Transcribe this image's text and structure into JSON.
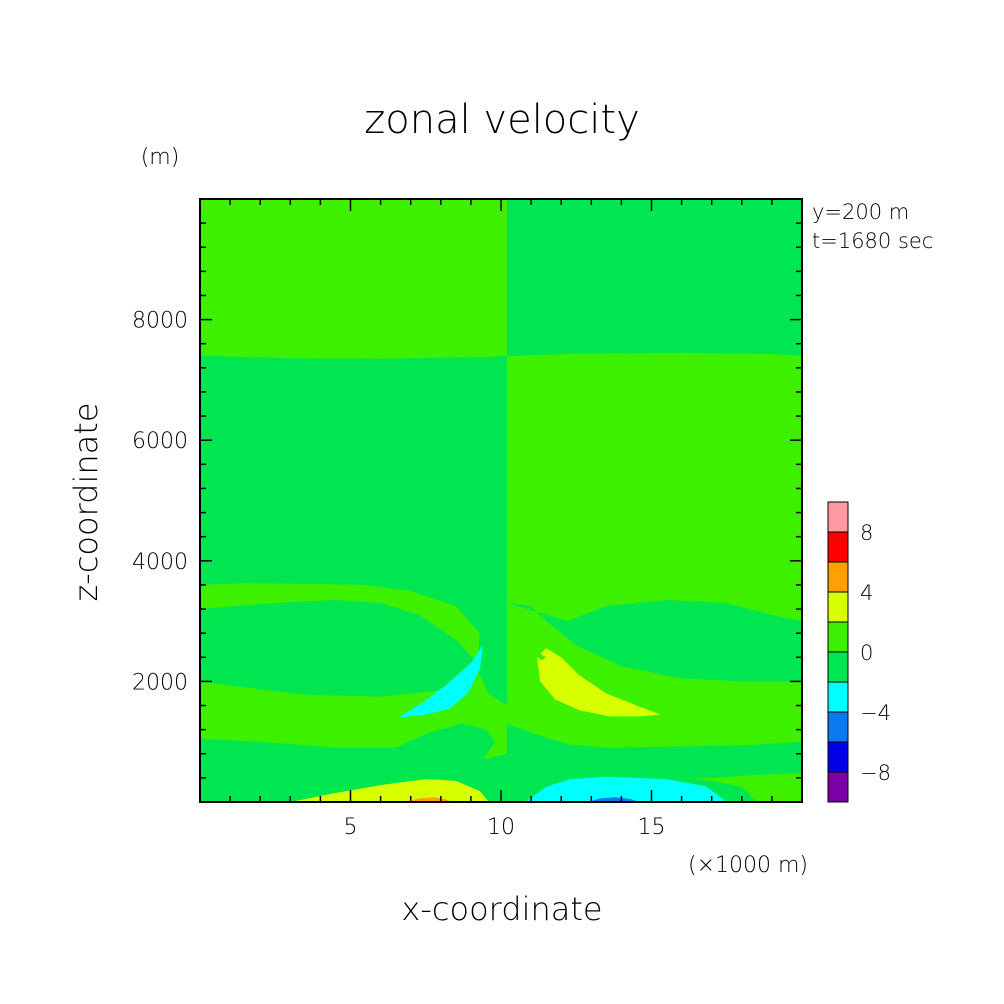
{
  "title": "zonal velocity",
  "chart_data": {
    "type": "contour",
    "title": "zonal velocity",
    "xlabel": "x-coordinate",
    "ylabel": "z-coordinate",
    "x_unit": "(×1000 m)",
    "y_unit": "(m)",
    "info": [
      "y=200 m",
      "t=1680 sec"
    ],
    "xlim": [
      0,
      20
    ],
    "ylim": [
      0,
      10000
    ],
    "x_ticks": [
      5,
      10,
      15
    ],
    "y_ticks": [
      2000,
      4000,
      6000,
      8000
    ],
    "x_minor_step": 1,
    "y_minor_step": 400,
    "grid": false,
    "colorbar": {
      "levels": [
        -10,
        -8,
        -6,
        -4,
        -2,
        0,
        2,
        4,
        6,
        8,
        10
      ],
      "colors": [
        "#7a00a8",
        "#0000e6",
        "#0a78ee",
        "#00ffff",
        "#00e650",
        "#3cf000",
        "#d8ff00",
        "#ff9f00",
        "#ff0000",
        "#ff9aa0"
      ],
      "tick_labels": [
        -8,
        -4,
        0,
        4,
        8
      ]
    },
    "regions": [
      {
        "band": "2 to 0",
        "color": "#00e650",
        "polygon": [
          [
            0,
            0
          ],
          [
            20,
            0
          ],
          [
            20,
            10000
          ],
          [
            0,
            10000
          ]
        ]
      },
      {
        "band": "0 to 2",
        "color": "#3cf000",
        "polygon": [
          [
            0,
            10000
          ],
          [
            10.2,
            10000
          ],
          [
            10.2,
            7400
          ],
          [
            9.5,
            7380
          ],
          [
            6,
            7350
          ],
          [
            3,
            7360
          ],
          [
            0,
            7400
          ]
        ]
      },
      {
        "band": "0 to 2",
        "color": "#3cf000",
        "polygon": [
          [
            10.2,
            7400
          ],
          [
            13,
            7440
          ],
          [
            16,
            7450
          ],
          [
            19,
            7430
          ],
          [
            20,
            7400
          ],
          [
            20,
            0
          ],
          [
            18.5,
            0
          ],
          [
            18,
            250
          ],
          [
            17,
            350
          ],
          [
            14,
            480
          ],
          [
            12.5,
            600
          ],
          [
            11,
            700
          ],
          [
            10.2,
            750
          ]
        ]
      },
      {
        "band": "0 to 2",
        "color": "#3cf000",
        "polygon": [
          [
            0,
            3600
          ],
          [
            1.5,
            3630
          ],
          [
            3.5,
            3620
          ],
          [
            5.5,
            3600
          ],
          [
            7,
            3500
          ],
          [
            8.5,
            3250
          ],
          [
            9.3,
            2800
          ],
          [
            9.2,
            2200
          ],
          [
            9.6,
            1800
          ],
          [
            10.2,
            1600
          ],
          [
            10.2,
            800
          ],
          [
            9,
            650
          ],
          [
            7,
            520
          ],
          [
            5,
            480
          ],
          [
            3,
            560
          ],
          [
            2,
            720
          ],
          [
            1,
            760
          ],
          [
            0,
            750
          ],
          [
            0,
            0
          ],
          [
            0,
            0
          ]
        ]
      },
      {
        "band": "2 to 0",
        "color": "#00e650",
        "polygon": [
          [
            0,
            2000
          ],
          [
            1.5,
            1900
          ],
          [
            3.5,
            1780
          ],
          [
            6,
            1750
          ],
          [
            8,
            1850
          ],
          [
            9.1,
            2100
          ],
          [
            9.2,
            2300
          ],
          [
            8.6,
            2650
          ],
          [
            7.3,
            3100
          ],
          [
            6,
            3300
          ],
          [
            4.5,
            3350
          ],
          [
            2.5,
            3300
          ],
          [
            0,
            3200
          ]
        ]
      },
      {
        "band": "2 to 0",
        "color": "#00e650",
        "polygon": [
          [
            0,
            650
          ],
          [
            2,
            600
          ],
          [
            3.5,
            450
          ],
          [
            5.5,
            350
          ],
          [
            7.5,
            380
          ],
          [
            9.2,
            550
          ],
          [
            9.8,
            1000
          ],
          [
            9.5,
            1200
          ],
          [
            8.7,
            1300
          ],
          [
            7.6,
            1150
          ],
          [
            6.5,
            900
          ],
          [
            4.5,
            900
          ],
          [
            2,
            1000
          ],
          [
            0,
            1050
          ]
        ]
      },
      {
        "band": "2 to 0",
        "color": "#00e650",
        "polygon": [
          [
            10.2,
            3300
          ],
          [
            11,
            3250
          ],
          [
            11.5,
            3000
          ],
          [
            12.5,
            2600
          ],
          [
            14,
            2250
          ],
          [
            16,
            2050
          ],
          [
            18,
            2000
          ],
          [
            20,
            2000
          ],
          [
            20,
            3000
          ],
          [
            19,
            3100
          ],
          [
            17.5,
            3300
          ],
          [
            15.5,
            3350
          ],
          [
            13.5,
            3250
          ],
          [
            12.2,
            3000
          ]
        ]
      },
      {
        "band": "2 to 0",
        "color": "#00e650",
        "polygon": [
          [
            10.2,
            600
          ],
          [
            11.5,
            500
          ],
          [
            13,
            400
          ],
          [
            15,
            360
          ],
          [
            17,
            400
          ],
          [
            18.5,
            450
          ],
          [
            20,
            480
          ],
          [
            20,
            1000
          ],
          [
            18.5,
            950
          ],
          [
            16,
            920
          ],
          [
            13.5,
            900
          ],
          [
            12.3,
            950
          ],
          [
            11.3,
            1100
          ],
          [
            10.2,
            1300
          ]
        ]
      },
      {
        "band": "2 to 4",
        "color": "#d8ff00",
        "polygon": [
          [
            3,
            0
          ],
          [
            4.5,
            150
          ],
          [
            6,
            280
          ],
          [
            7.5,
            380
          ],
          [
            8.5,
            350
          ],
          [
            9.3,
            180
          ],
          [
            9.6,
            0
          ]
        ]
      },
      {
        "band": "4 to 6",
        "color": "#ff9f00",
        "polygon": [
          [
            6.8,
            0
          ],
          [
            7.3,
            60
          ],
          [
            7.8,
            80
          ],
          [
            8.2,
            40
          ],
          [
            8.4,
            0
          ]
        ]
      },
      {
        "band": "-4 to -2",
        "color": "#00ffff",
        "polygon": [
          [
            10.8,
            0
          ],
          [
            11.5,
            250
          ],
          [
            12.3,
            380
          ],
          [
            13.5,
            420
          ],
          [
            15.5,
            380
          ],
          [
            16.8,
            260
          ],
          [
            17.5,
            0
          ]
        ]
      },
      {
        "band": "-6 to -4",
        "color": "#0a78ee",
        "polygon": [
          [
            12.9,
            0
          ],
          [
            13.3,
            60
          ],
          [
            13.8,
            80
          ],
          [
            14.3,
            50
          ],
          [
            14.6,
            0
          ]
        ]
      },
      {
        "band": "-4 to -2",
        "color": "#00ffff",
        "polygon": [
          [
            6.6,
            1400
          ],
          [
            7.5,
            1450
          ],
          [
            8.3,
            1550
          ],
          [
            8.9,
            1800
          ],
          [
            9.3,
            2200
          ],
          [
            9.4,
            2600
          ],
          [
            9.0,
            2300
          ],
          [
            8.2,
            1950
          ],
          [
            7.4,
            1650
          ]
        ]
      },
      {
        "band": "2 to 4",
        "color": "#d8ff00",
        "polygon": [
          [
            11.5,
            2550
          ],
          [
            12,
            2400
          ],
          [
            12.6,
            2100
          ],
          [
            13.5,
            1800
          ],
          [
            14.5,
            1600
          ],
          [
            15.3,
            1450
          ],
          [
            14.6,
            1420
          ],
          [
            13.6,
            1420
          ],
          [
            12.6,
            1520
          ],
          [
            11.8,
            1700
          ],
          [
            11.3,
            2000
          ],
          [
            11.2,
            2400
          ]
        ]
      },
      {
        "band": "0 to 2",
        "color": "#3cf000",
        "polygon": [
          [
            11.15,
            2500
          ],
          [
            11.5,
            2400
          ],
          [
            11.35,
            2350
          ],
          [
            11.1,
            2450
          ]
        ]
      }
    ]
  }
}
